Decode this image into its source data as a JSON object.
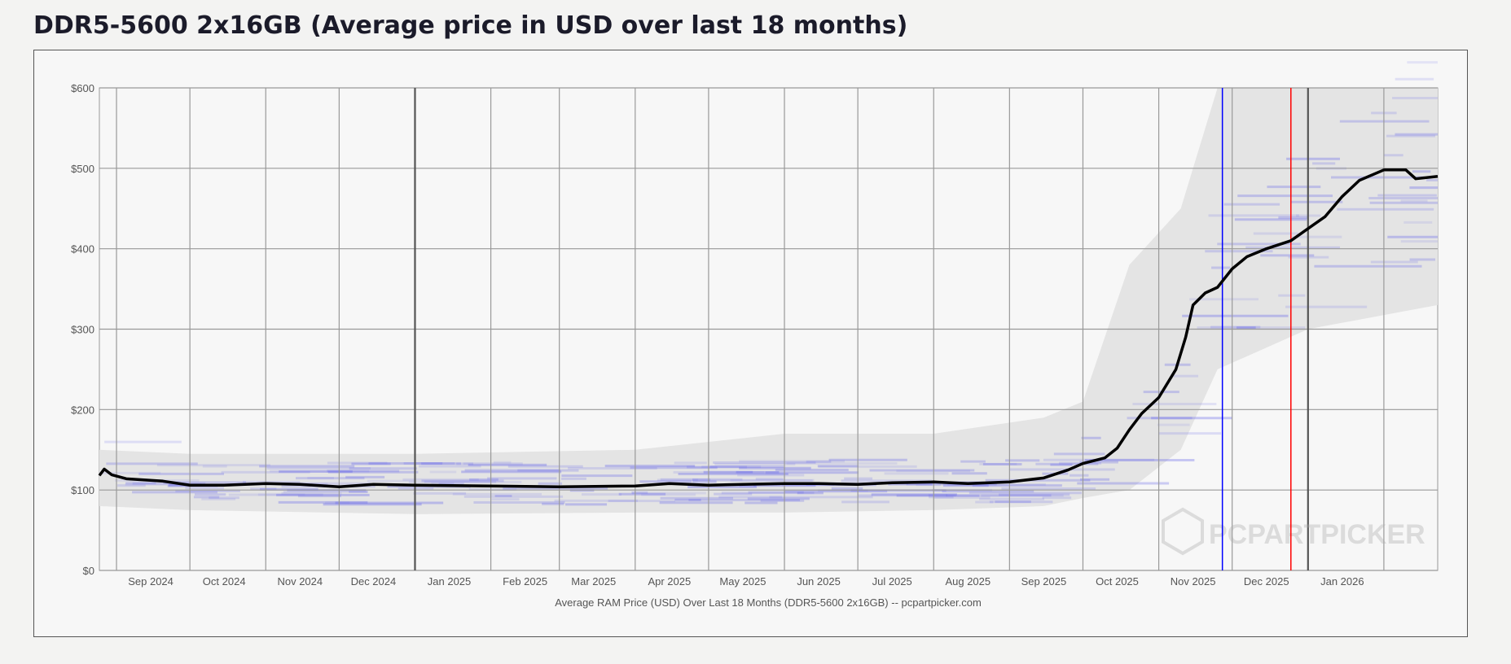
{
  "page": {
    "title": "DDR5-5600 2x16GB (Average price in USD over last 18 months)"
  },
  "chart_data": {
    "type": "line",
    "title": "DDR5-5600 2x16GB (Average price in USD over last 18 months)",
    "xlabel": "Average RAM Price (USD) Over Last 18 Months (DDR5-5600 2x16GB) -- pcpartpicker.com",
    "ylabel": "",
    "xlim": [
      "2024-08-25",
      "2026-02-23"
    ],
    "ylim": [
      0,
      600
    ],
    "grid": true,
    "y_ticks": [
      {
        "v": 0,
        "label": "$0"
      },
      {
        "v": 100,
        "label": "$100"
      },
      {
        "v": 200,
        "label": "$200"
      },
      {
        "v": 300,
        "label": "$300"
      },
      {
        "v": 400,
        "label": "$400"
      },
      {
        "v": 500,
        "label": "$500"
      },
      {
        "v": 600,
        "label": "$600"
      }
    ],
    "x_ticks": [
      {
        "date": "2024-09-15",
        "label": "Sep 2024"
      },
      {
        "date": "2024-10-15",
        "label": "Oct 2024"
      },
      {
        "date": "2024-11-15",
        "label": "Nov 2024"
      },
      {
        "date": "2024-12-15",
        "label": "Dec 2024"
      },
      {
        "date": "2025-01-15",
        "label": "Jan 2025"
      },
      {
        "date": "2025-02-15",
        "label": "Feb 2025"
      },
      {
        "date": "2025-03-15",
        "label": "Mar 2025"
      },
      {
        "date": "2025-04-15",
        "label": "Apr 2025"
      },
      {
        "date": "2025-05-15",
        "label": "May 2025"
      },
      {
        "date": "2025-06-15",
        "label": "Jun 2025"
      },
      {
        "date": "2025-07-15",
        "label": "Jul 2025"
      },
      {
        "date": "2025-08-15",
        "label": "Aug 2025"
      },
      {
        "date": "2025-09-15",
        "label": "Sep 2025"
      },
      {
        "date": "2025-10-15",
        "label": "Oct 2025"
      },
      {
        "date": "2025-11-15",
        "label": "Nov 2025"
      },
      {
        "date": "2025-12-15",
        "label": "Dec 2025"
      },
      {
        "date": "2026-01-15",
        "label": "Jan 2026"
      }
    ],
    "year_boundaries": [
      "2025-01-01",
      "2026-01-01"
    ],
    "markers": [
      {
        "date": "2025-11-27",
        "color": "#0000ff"
      },
      {
        "date": "2025-12-25",
        "color": "#ff0000"
      }
    ],
    "series": [
      {
        "color": "#000000",
        "points": [
          [
            "2024-08-25",
            118
          ],
          [
            "2024-08-27",
            126
          ],
          [
            "2024-08-30",
            119
          ],
          [
            "2024-09-05",
            114
          ],
          [
            "2024-09-20",
            111
          ],
          [
            "2024-10-01",
            106
          ],
          [
            "2024-10-15",
            106
          ],
          [
            "2024-11-01",
            108
          ],
          [
            "2024-11-15",
            107
          ],
          [
            "2024-12-01",
            104
          ],
          [
            "2024-12-15",
            107
          ],
          [
            "2025-01-01",
            106
          ],
          [
            "2025-02-01",
            105
          ],
          [
            "2025-03-01",
            104
          ],
          [
            "2025-04-01",
            105
          ],
          [
            "2025-04-15",
            108
          ],
          [
            "2025-05-01",
            106
          ],
          [
            "2025-05-15",
            107
          ],
          [
            "2025-06-01",
            108
          ],
          [
            "2025-06-15",
            108
          ],
          [
            "2025-07-01",
            107
          ],
          [
            "2025-07-15",
            109
          ],
          [
            "2025-08-01",
            110
          ],
          [
            "2025-08-15",
            108
          ],
          [
            "2025-09-01",
            110
          ],
          [
            "2025-09-15",
            115
          ],
          [
            "2025-09-25",
            125
          ],
          [
            "2025-10-01",
            133
          ],
          [
            "2025-10-10",
            140
          ],
          [
            "2025-10-15",
            152
          ],
          [
            "2025-10-20",
            175
          ],
          [
            "2025-10-25",
            195
          ],
          [
            "2025-11-01",
            215
          ],
          [
            "2025-11-08",
            250
          ],
          [
            "2025-11-12",
            290
          ],
          [
            "2025-11-15",
            330
          ],
          [
            "2025-11-20",
            345
          ],
          [
            "2025-11-25",
            352
          ],
          [
            "2025-12-01",
            375
          ],
          [
            "2025-12-07",
            390
          ],
          [
            "2025-12-15",
            400
          ],
          [
            "2025-12-25",
            410
          ],
          [
            "2026-01-01",
            425
          ],
          [
            "2026-01-08",
            440
          ],
          [
            "2026-01-15",
            465
          ],
          [
            "2026-01-22",
            485
          ],
          [
            "2026-02-01",
            498
          ],
          [
            "2026-02-10",
            498
          ],
          [
            "2026-02-14",
            487
          ],
          [
            "2026-02-23",
            490
          ]
        ]
      }
    ],
    "price_range_band": {
      "color": "#e4e4e4",
      "points": [
        [
          "2024-08-25",
          80,
          150
        ],
        [
          "2024-10-01",
          75,
          145
        ],
        [
          "2025-01-01",
          70,
          145
        ],
        [
          "2025-04-01",
          72,
          150
        ],
        [
          "2025-06-01",
          72,
          170
        ],
        [
          "2025-08-01",
          75,
          170
        ],
        [
          "2025-09-15",
          80,
          190
        ],
        [
          "2025-10-01",
          90,
          210
        ],
        [
          "2025-10-20",
          100,
          380
        ],
        [
          "2025-11-10",
          150,
          450
        ],
        [
          "2025-11-25",
          250,
          600
        ],
        [
          "2026-01-01",
          300,
          600
        ],
        [
          "2026-02-23",
          330,
          600
        ]
      ]
    },
    "retailer_price_color": "#6b6bea"
  },
  "watermark": {
    "text": "PCPARTPICKER"
  }
}
